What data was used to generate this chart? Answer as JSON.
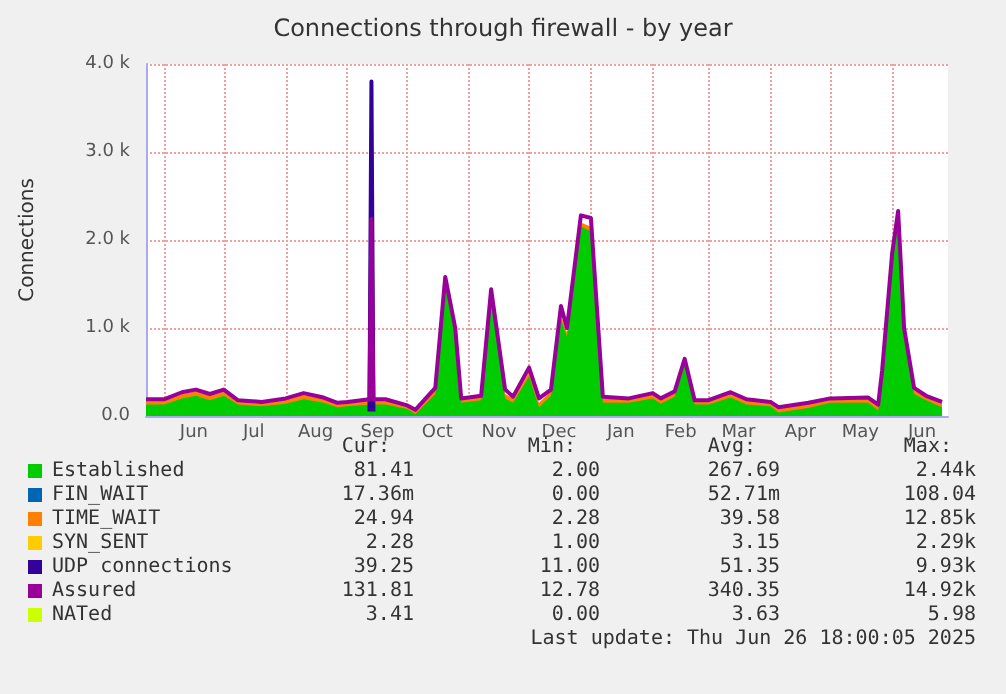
{
  "chart_data": {
    "type": "area",
    "title": "Connections through firewall - by year",
    "ylabel": "Connections",
    "x": [
      "2024-05-23",
      "2024-06-01",
      "2024-06-10",
      "2024-06-17",
      "2024-06-24",
      "2024-07-01",
      "2024-07-08",
      "2024-07-20",
      "2024-08-01",
      "2024-08-10",
      "2024-08-20",
      "2024-08-27",
      "2024-09-01",
      "2024-09-12",
      "2024-09-13",
      "2024-09-14",
      "2024-09-20",
      "2024-10-01",
      "2024-10-05",
      "2024-10-15",
      "2024-10-20",
      "2024-10-25",
      "2024-10-28",
      "2024-11-07",
      "2024-11-12",
      "2024-11-19",
      "2024-11-23",
      "2024-12-01",
      "2024-12-06",
      "2024-12-12",
      "2024-12-17",
      "2024-12-20",
      "2024-12-27",
      "2025-01-01",
      "2025-01-07",
      "2025-01-20",
      "2025-02-01",
      "2025-02-05",
      "2025-02-12",
      "2025-02-17",
      "2025-02-22",
      "2025-03-01",
      "2025-03-12",
      "2025-03-20",
      "2025-04-01",
      "2025-04-05",
      "2025-04-20",
      "2025-05-01",
      "2025-05-20",
      "2025-05-25",
      "2025-05-27",
      "2025-06-01",
      "2025-06-04",
      "2025-06-07",
      "2025-06-12",
      "2025-06-18",
      "2025-06-26"
    ],
    "series": [
      {
        "name": "Established",
        "type": "area",
        "color": "#00cc00",
        "values": [
          130,
          130,
          200,
          230,
          180,
          230,
          130,
          110,
          140,
          190,
          150,
          100,
          110,
          130,
          130,
          130,
          130,
          80,
          20,
          250,
          1480,
          900,
          150,
          180,
          1340,
          200,
          150,
          450,
          100,
          230,
          1100,
          900,
          2150,
          2100,
          150,
          150,
          200,
          140,
          220,
          580,
          130,
          130,
          210,
          130,
          110,
          40,
          90,
          150,
          150,
          60,
          450,
          1750,
          2200,
          900,
          250,
          180,
          100
        ]
      },
      {
        "name": "FIN_WAIT",
        "type": "line",
        "color": "#0066b3",
        "values": [
          null,
          null,
          null,
          null,
          null,
          null,
          null,
          null,
          null,
          null,
          null,
          null,
          null,
          null,
          null,
          null,
          null,
          null,
          null,
          null,
          null,
          null,
          null,
          null,
          null,
          null,
          null,
          null,
          null,
          null,
          null,
          null,
          null,
          null,
          null,
          null,
          null,
          null,
          null,
          null,
          null,
          null,
          null,
          null,
          null,
          null,
          null,
          null,
          null,
          null,
          null,
          null,
          null,
          null,
          null,
          null,
          null
        ]
      },
      {
        "name": "TIME_WAIT",
        "type": "area",
        "color": "#ff8000",
        "values": [
          50,
          50,
          50,
          50,
          50,
          50,
          50,
          50,
          50,
          50,
          50,
          50,
          50,
          50,
          50,
          50,
          50,
          50,
          50,
          50,
          50,
          50,
          50,
          50,
          50,
          50,
          50,
          50,
          50,
          50,
          50,
          50,
          50,
          50,
          50,
          50,
          50,
          50,
          50,
          50,
          50,
          50,
          50,
          50,
          50,
          50,
          50,
          50,
          50,
          50,
          50,
          50,
          50,
          50,
          50,
          50,
          50
        ]
      },
      {
        "name": "SYN_SENT",
        "type": "line",
        "color": "#ffcc00",
        "values": [
          null,
          null,
          null,
          null,
          null,
          null,
          null,
          null,
          null,
          null,
          null,
          null,
          null,
          null,
          null,
          null,
          null,
          null,
          null,
          null,
          null,
          null,
          null,
          null,
          null,
          null,
          null,
          null,
          null,
          null,
          null,
          null,
          null,
          null,
          null,
          null,
          null,
          null,
          null,
          null,
          null,
          null,
          null,
          null,
          null,
          null,
          null,
          null,
          null,
          null,
          null,
          null,
          null,
          null,
          null,
          null,
          null
        ]
      },
      {
        "name": "UDP connections",
        "type": "line",
        "color": "#330099",
        "values": [
          null,
          null,
          null,
          null,
          null,
          null,
          null,
          null,
          null,
          null,
          null,
          null,
          null,
          50,
          3800,
          50,
          null,
          null,
          null,
          null,
          null,
          null,
          null,
          null,
          null,
          null,
          null,
          null,
          null,
          null,
          null,
          null,
          null,
          null,
          null,
          null,
          null,
          null,
          null,
          null,
          null,
          null,
          null,
          null,
          null,
          null,
          null,
          null,
          null,
          null,
          null,
          null,
          null,
          null,
          null,
          null,
          null
        ]
      },
      {
        "name": "Assured",
        "type": "line",
        "color": "#990099",
        "values": [
          190,
          190,
          270,
          300,
          250,
          300,
          180,
          160,
          200,
          260,
          210,
          150,
          160,
          190,
          2240,
          190,
          190,
          120,
          70,
          320,
          1580,
          1000,
          200,
          230,
          1440,
          300,
          220,
          550,
          200,
          300,
          1250,
          1000,
          2280,
          2250,
          220,
          200,
          260,
          200,
          280,
          650,
          180,
          180,
          270,
          190,
          160,
          100,
          150,
          200,
          210,
          130,
          520,
          1850,
          2330,
          1000,
          320,
          230,
          160
        ]
      },
      {
        "name": "NATed",
        "type": "line",
        "color": "#ccff00",
        "values": [
          null,
          null,
          null,
          null,
          null,
          null,
          null,
          null,
          null,
          null,
          null,
          null,
          null,
          null,
          null,
          null,
          null,
          null,
          null,
          null,
          null,
          null,
          null,
          null,
          null,
          null,
          null,
          null,
          null,
          null,
          null,
          null,
          null,
          null,
          null,
          null,
          null,
          null,
          null,
          null,
          null,
          null,
          null,
          null,
          null,
          null,
          null,
          null,
          null,
          null,
          null,
          null,
          null,
          null,
          null,
          null,
          null
        ]
      }
    ],
    "stacked": true,
    "xlim": [
      "2024-05-23",
      "2025-06-29"
    ],
    "xticks": [
      {
        "value": "2024-06-01",
        "label": null
      },
      {
        "value": "2024-06-16",
        "label": "Jun"
      },
      {
        "value": "2024-07-01",
        "label": null
      },
      {
        "value": "2024-07-16",
        "label": "Jul"
      },
      {
        "value": "2024-08-01",
        "label": null
      },
      {
        "value": "2024-08-16",
        "label": "Aug"
      },
      {
        "value": "2024-09-01",
        "label": null
      },
      {
        "value": "2024-09-16",
        "label": "Sep"
      },
      {
        "value": "2024-10-01",
        "label": null
      },
      {
        "value": "2024-10-16",
        "label": "Oct"
      },
      {
        "value": "2024-11-01",
        "label": null
      },
      {
        "value": "2024-11-16",
        "label": "Nov"
      },
      {
        "value": "2024-12-01",
        "label": null
      },
      {
        "value": "2024-12-16",
        "label": "Dec"
      },
      {
        "value": "2025-01-01",
        "label": null
      },
      {
        "value": "2025-01-16",
        "label": "Jan"
      },
      {
        "value": "2025-02-01",
        "label": null
      },
      {
        "value": "2025-02-15",
        "label": "Feb"
      },
      {
        "value": "2025-03-01",
        "label": null
      },
      {
        "value": "2025-03-16",
        "label": "Mar"
      },
      {
        "value": "2025-04-01",
        "label": null
      },
      {
        "value": "2025-04-16",
        "label": "Apr"
      },
      {
        "value": "2025-05-01",
        "label": null
      },
      {
        "value": "2025-05-16",
        "label": "May"
      },
      {
        "value": "2025-06-01",
        "label": null
      },
      {
        "value": "2025-06-16",
        "label": "Jun"
      }
    ],
    "ylim": [
      0,
      4000
    ],
    "yticks": [
      {
        "value": 0,
        "label": "0.0"
      },
      {
        "value": 1000,
        "label": "1.0 k"
      },
      {
        "value": 2000,
        "label": "2.0 k"
      },
      {
        "value": 3000,
        "label": "3.0 k"
      },
      {
        "value": 4000,
        "label": "4.0 k"
      }
    ],
    "grid": true,
    "legend": "bottom",
    "annotations": [
      "Cur:",
      "Min:",
      "Avg:",
      "Max:",
      "81.41",
      "2.00",
      "267.69",
      "2.44k",
      "17.36m",
      "0.00",
      "52.71m",
      "108.04",
      "24.94",
      "2.28",
      "39.58",
      "12.85k",
      "2.28",
      "1.00",
      "3.15",
      "2.29k",
      "39.25",
      "11.00",
      "51.35",
      "9.93k",
      "131.81",
      "12.78",
      "340.35",
      "14.92k",
      "3.41",
      "0.00",
      "3.63",
      "5.98",
      "Last update: Thu Jun 26 18:00:05 2025"
    ]
  }
}
